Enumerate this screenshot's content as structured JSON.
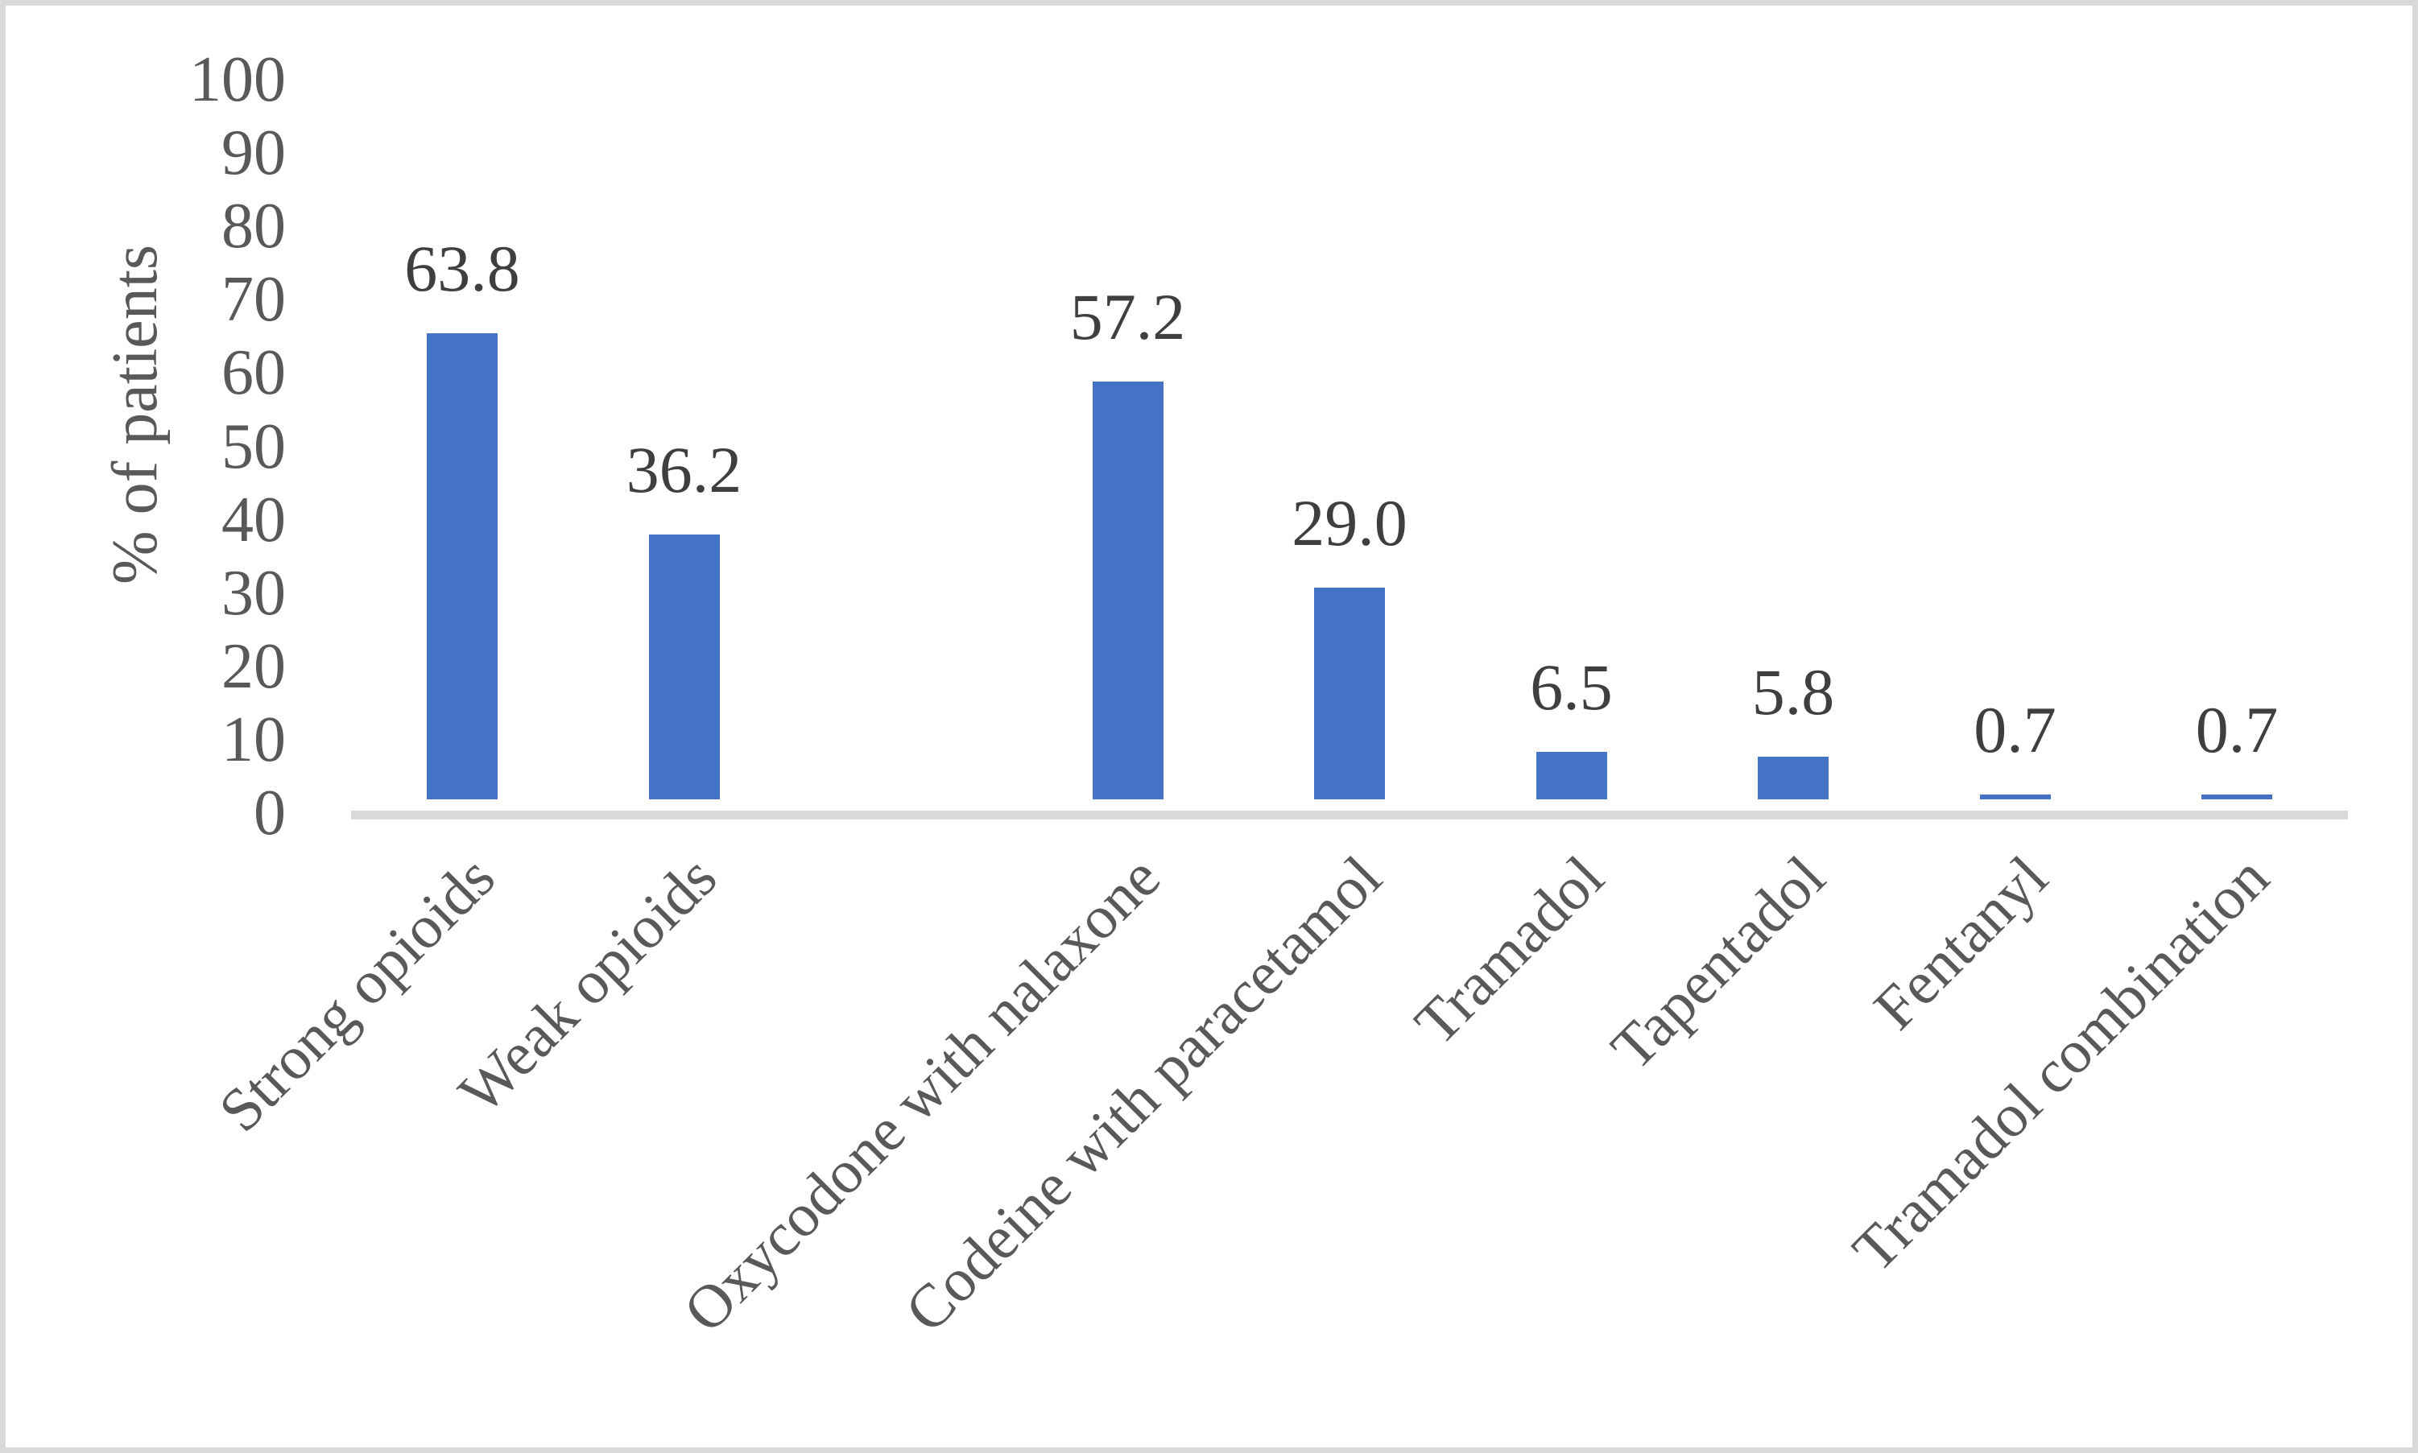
{
  "figure": {
    "background_color": "#ffffff",
    "frame_color": "#d9d9d9",
    "axis_line_color": "#d9d9d9",
    "bar_color": "#4472c4",
    "axis_text_color": "#595959",
    "data_label_color": "#3f3f3f"
  },
  "chart_data": {
    "type": "bar",
    "title": "",
    "xlabel": "",
    "ylabel": "% of patients",
    "ylim": [
      0,
      100
    ],
    "ytick_step": 10,
    "ytick_labels": [
      "0",
      "10",
      "20",
      "30",
      "40",
      "50",
      "60",
      "70",
      "80",
      "90",
      "100"
    ],
    "grid": false,
    "legend": false,
    "bar_color": "#4472c4",
    "x_label_rotation_deg": 45,
    "categories": [
      "Strong opioids",
      "Weak opioids",
      "",
      "Oxycodone with nalaxone",
      "Codeine with paracetamol",
      "Tramadol",
      "Tapentadol",
      "Fentanyl",
      "Tramadol combination"
    ],
    "values": [
      63.8,
      36.2,
      null,
      57.2,
      29.0,
      6.5,
      5.8,
      0.7,
      0.7
    ],
    "data_labels": [
      "63.8",
      "36.2",
      "",
      "57.2",
      "29.0",
      "6.5",
      "5.8",
      "0.7",
      "0.7"
    ]
  }
}
